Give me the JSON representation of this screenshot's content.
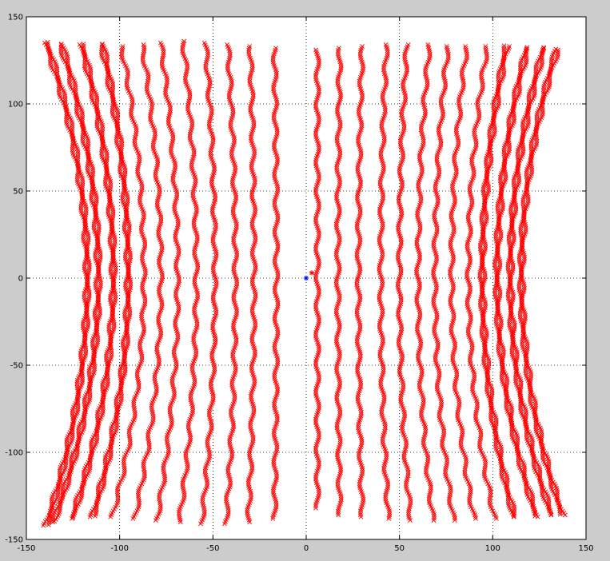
{
  "figure": {
    "background": "#cccccc",
    "axes_background": "#ffffff"
  },
  "chart_data": {
    "type": "scatter",
    "title": "",
    "xlabel": "",
    "ylabel": "",
    "xlim": [
      -150,
      150
    ],
    "ylim": [
      -150,
      150
    ],
    "grid": true,
    "grid_style": "dotted",
    "xticks": [
      -150,
      -100,
      -50,
      0,
      50,
      100,
      150
    ],
    "yticks": [
      -150,
      -100,
      -50,
      0,
      50,
      100,
      150
    ],
    "xtick_labels": [
      "-150",
      "-100",
      "-50",
      "0",
      "50",
      "100",
      "150"
    ],
    "ytick_labels": [
      "-150",
      "-100",
      "-50",
      "0",
      "50",
      "100",
      "150"
    ],
    "series": [
      {
        "marker": "x",
        "color": "#ff0000",
        "description_of_shape": "vertical lines of x markers, curving outward (pincushion) toward the top and bottom",
        "lines": [
          {
            "x_center": -118,
            "x_top": -140,
            "x_bottom": -140,
            "y_top": 135,
            "y_bottom": -142
          },
          {
            "x_center": -112,
            "x_top": -132,
            "x_bottom": -136,
            "y_top": 134,
            "y_bottom": -140
          },
          {
            "x_center": -104,
            "x_top": -121,
            "x_bottom": -126,
            "y_top": 134,
            "y_bottom": -138
          },
          {
            "x_center": -96,
            "x_top": -110,
            "x_bottom": -115,
            "y_top": 134,
            "y_bottom": -137
          },
          {
            "x_center": -87,
            "x_top": -99,
            "x_bottom": -104,
            "y_top": 133,
            "y_bottom": -137
          },
          {
            "x_center": -78,
            "x_top": -88,
            "x_bottom": -92,
            "y_top": 134,
            "y_bottom": -138
          },
          {
            "x_center": -69,
            "x_top": -78,
            "x_bottom": -80,
            "y_top": 135,
            "y_bottom": -139
          },
          {
            "x_center": -59,
            "x_top": -66,
            "x_bottom": -68,
            "y_top": 136,
            "y_bottom": -140
          },
          {
            "x_center": -49,
            "x_top": -54,
            "x_bottom": -56,
            "y_top": 135,
            "y_bottom": -141
          },
          {
            "x_center": -38,
            "x_top": -42,
            "x_bottom": -43,
            "y_top": 134,
            "y_bottom": -141
          },
          {
            "x_center": -28,
            "x_top": -30,
            "x_bottom": -31,
            "y_top": 133,
            "y_bottom": -140
          },
          {
            "x_center": -16,
            "x_top": -17,
            "x_bottom": -17,
            "y_top": 132,
            "y_bottom": -138
          },
          {
            "x_center": 6,
            "x_top": 6,
            "x_bottom": 6,
            "y_top": 131,
            "y_bottom": -132
          },
          {
            "x_center": 17,
            "x_top": 18,
            "x_bottom": 18,
            "y_top": 132,
            "y_bottom": -136
          },
          {
            "x_center": 28,
            "x_top": 30,
            "x_bottom": 30,
            "y_top": 133,
            "y_bottom": -137
          },
          {
            "x_center": 40,
            "x_top": 43,
            "x_bottom": 44,
            "y_top": 134,
            "y_bottom": -138
          },
          {
            "x_center": 50,
            "x_top": 54,
            "x_bottom": 56,
            "y_top": 134,
            "y_bottom": -139
          },
          {
            "x_center": 60,
            "x_top": 66,
            "x_bottom": 68,
            "y_top": 134,
            "y_bottom": -139
          },
          {
            "x_center": 69,
            "x_top": 76,
            "x_bottom": 79,
            "y_top": 133,
            "y_bottom": -139
          },
          {
            "x_center": 78,
            "x_top": 86,
            "x_bottom": 90,
            "y_top": 133,
            "y_bottom": -138
          },
          {
            "x_center": 87,
            "x_top": 97,
            "x_bottom": 101,
            "y_top": 133,
            "y_bottom": -138
          },
          {
            "x_center": 95,
            "x_top": 108,
            "x_bottom": 112,
            "y_top": 133,
            "y_bottom": -137
          },
          {
            "x_center": 103,
            "x_top": 119,
            "x_bottom": 124,
            "y_top": 132,
            "y_bottom": -137
          },
          {
            "x_center": 110,
            "x_top": 128,
            "x_bottom": 132,
            "y_top": 132,
            "y_bottom": -136
          },
          {
            "x_center": 116,
            "x_top": 135,
            "x_bottom": 138,
            "y_top": 131,
            "y_bottom": -136
          }
        ]
      },
      {
        "marker": "*",
        "color": "#0000ff",
        "points": [
          {
            "x": 0,
            "y": 0
          }
        ]
      },
      {
        "marker": "*",
        "color": "#ff0000",
        "points": [
          {
            "x": 3,
            "y": 3
          }
        ]
      }
    ]
  }
}
